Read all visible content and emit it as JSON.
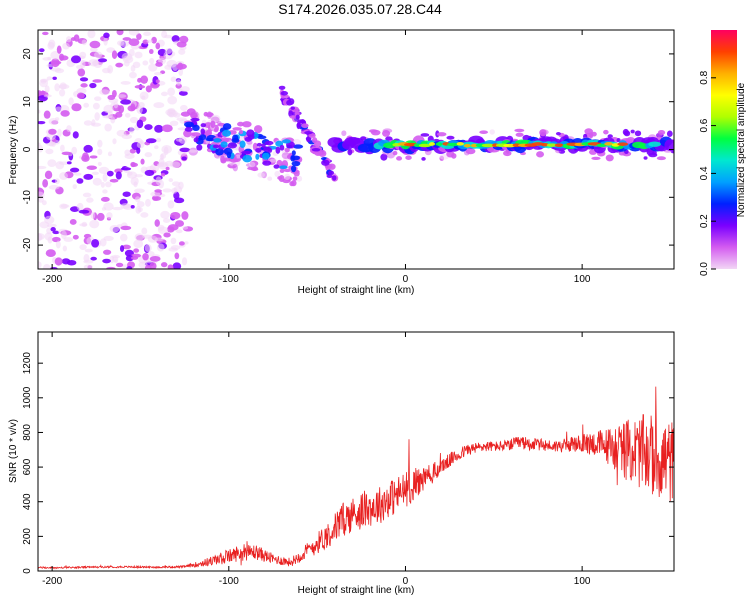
{
  "title": "S174.2026.035.07.28.C44",
  "chart_data": [
    {
      "type": "heatmap",
      "title": "S174.2026.035.07.28.C44",
      "xlabel": "Height of straight line (km)",
      "ylabel": "Frequency (Hz)",
      "xlim": [
        -208,
        152
      ],
      "ylim": [
        -25,
        25
      ],
      "xticks": [
        -200,
        -100,
        0,
        100
      ],
      "yticks": [
        -20,
        -10,
        0,
        10,
        20
      ],
      "colorbar": {
        "label": "Normalized spectral amplitude",
        "range": [
          0.0,
          1.0
        ],
        "ticks": [
          0.0,
          0.2,
          0.4,
          0.6,
          0.8
        ],
        "tick_labels": [
          "0.0",
          "0.2",
          "0.4",
          "0.6",
          "0.8"
        ],
        "colormap": [
          "#f2d6f5",
          "#d45cf0",
          "#7a00ff",
          "#0020ff",
          "#00a0ff",
          "#00e8d0",
          "#00ff40",
          "#b0ff00",
          "#ffff00",
          "#ffb000",
          "#ff4000",
          "#ff0060"
        ]
      },
      "features": [
        {
          "name": "diffuse noise",
          "x_range": [
            -208,
            -123
          ],
          "freq_range": [
            -25,
            25
          ],
          "amplitude": 0.05
        },
        {
          "name": "transition cluster",
          "x_range": [
            -123,
            -60
          ],
          "freq_range": [
            -8,
            8
          ],
          "amplitude": 0.2
        },
        {
          "name": "diagonal streak",
          "x_range": [
            -70,
            -40
          ],
          "freq_range": [
            -6,
            12
          ],
          "amplitude": 0.15
        },
        {
          "name": "main line",
          "x_range": [
            -40,
            152
          ],
          "freq": 1,
          "amplitude": 0.9
        }
      ]
    },
    {
      "type": "line",
      "xlabel": "Height of straight line (km)",
      "ylabel": "SNR (10 * v/v)",
      "xlim": [
        -208,
        152
      ],
      "ylim": [
        0,
        1380
      ],
      "xticks": [
        -200,
        -100,
        0,
        100
      ],
      "yticks": [
        0,
        200,
        400,
        600,
        800,
        1000,
        1200
      ],
      "color": "#e82020",
      "series": [
        {
          "name": "SNR",
          "x": [
            -208,
            -200,
            -180,
            -160,
            -140,
            -125,
            -115,
            -105,
            -95,
            -85,
            -75,
            -65,
            -55,
            -45,
            -35,
            -25,
            -15,
            -5,
            5,
            15,
            25,
            35,
            45,
            55,
            65,
            75,
            85,
            95,
            105,
            115,
            125,
            135,
            145,
            152
          ],
          "y": [
            20,
            18,
            22,
            24,
            22,
            25,
            45,
            70,
            100,
            110,
            70,
            50,
            120,
            200,
            300,
            350,
            380,
            440,
            500,
            560,
            640,
            700,
            720,
            720,
            740,
            730,
            720,
            730,
            740,
            720,
            700,
            680,
            650,
            620
          ],
          "spread": [
            10,
            10,
            10,
            10,
            10,
            12,
            40,
            70,
            90,
            90,
            60,
            50,
            100,
            150,
            200,
            220,
            220,
            220,
            200,
            120,
            80,
            70,
            60,
            60,
            80,
            70,
            70,
            90,
            130,
            220,
            350,
            450,
            500,
            500
          ]
        }
      ]
    }
  ]
}
